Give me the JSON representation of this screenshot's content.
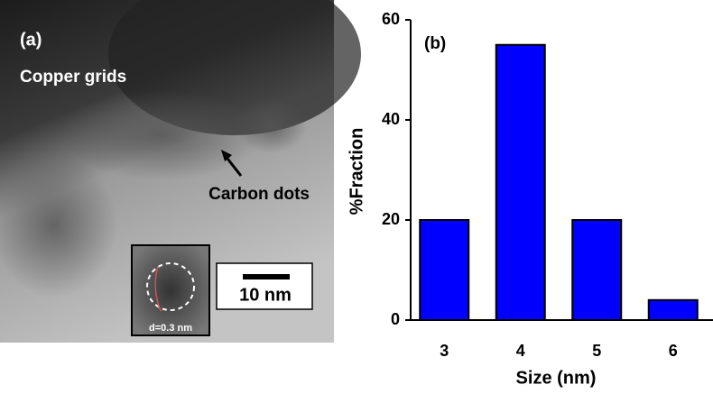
{
  "image_panel": {
    "panel_label": "(a)",
    "region_label": "Copper grids",
    "arrow_label": "Carbon dots",
    "scale_bar": "10 nm",
    "inset_label": "d=0.3 nm"
  },
  "chart_data": {
    "type": "bar",
    "panel_label": "(b)",
    "x_label": "Size (nm)",
    "y_label": "%Fraction",
    "categories": [
      "3",
      "4",
      "5",
      "6"
    ],
    "values": [
      20,
      55,
      20,
      4
    ],
    "color": "#0000ff",
    "ylim": [
      0,
      60
    ],
    "yticks": [
      0,
      20,
      40,
      60
    ]
  }
}
